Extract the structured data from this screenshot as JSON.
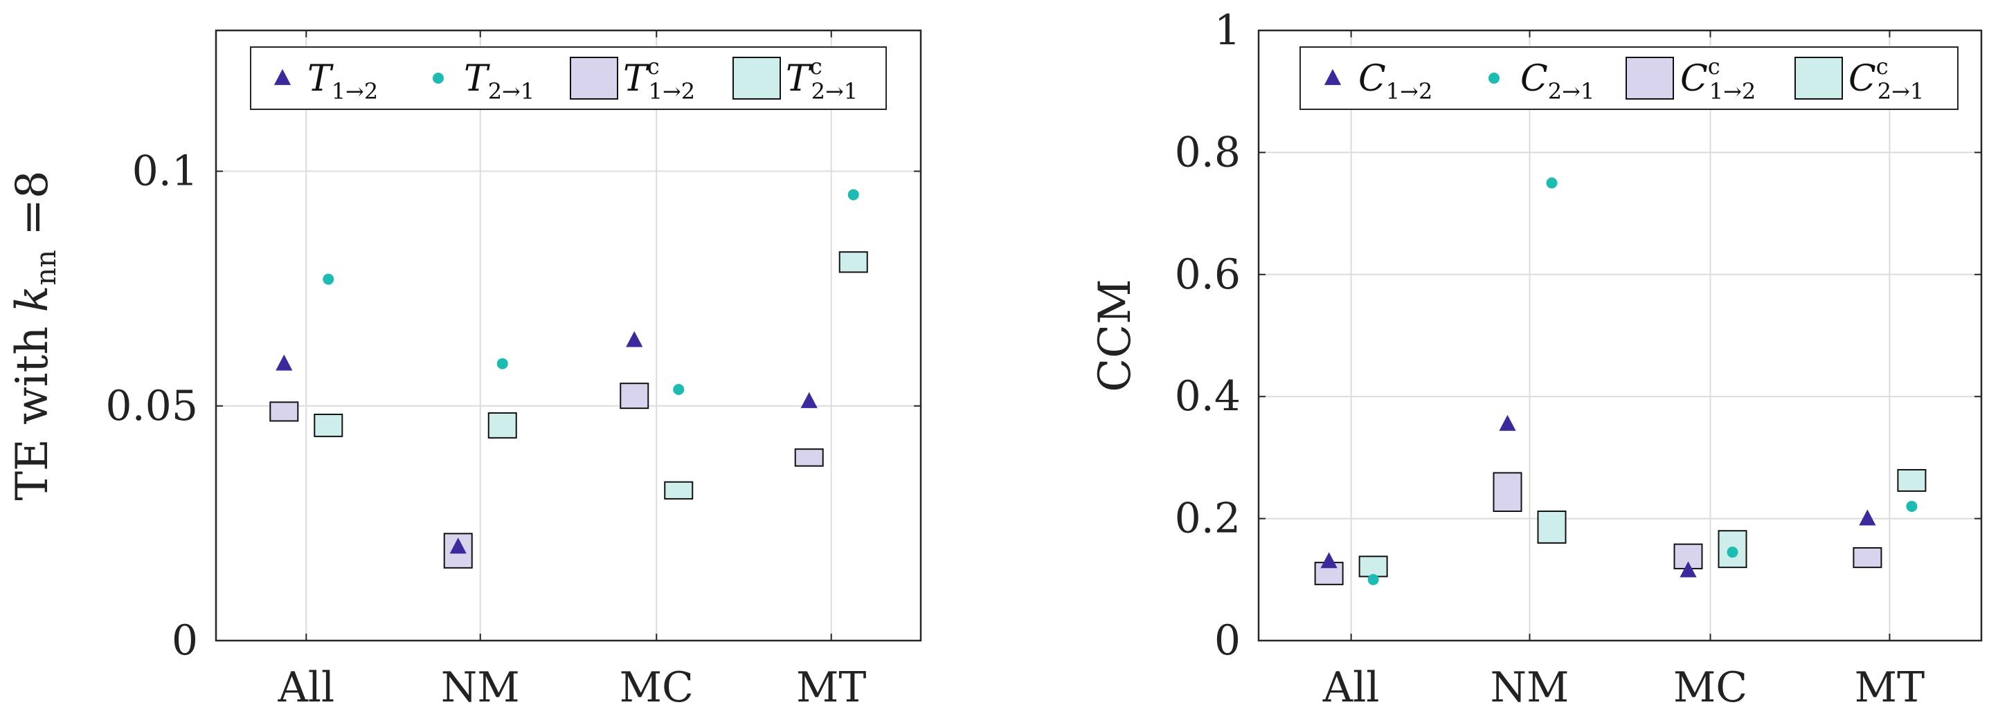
{
  "colors": {
    "forward_marker": "#3a2a9c",
    "backward_marker": "#1cbcb2",
    "forward_box_fill": "#d8d4ee",
    "backward_box_fill": "#cdeeea",
    "box_stroke": "#111111"
  },
  "chart_data": [
    {
      "type": "scatter",
      "ylabel_parts": {
        "prefix": "TE with ",
        "k": "k",
        "sub": "nn",
        "suffix": " =8"
      },
      "categories": [
        "All",
        "NM",
        "MC",
        "MT"
      ],
      "ylim": [
        0,
        0.13
      ],
      "yticks": [
        0,
        0.05,
        0.1
      ],
      "ytick_labels": [
        "0",
        "0.05",
        "0.1"
      ],
      "grid": true,
      "legend": [
        {
          "key": "forward",
          "symbol": "triangle",
          "sym": "T",
          "sub": "1→2",
          "sup": ""
        },
        {
          "key": "backward",
          "symbol": "circle",
          "sym": "T",
          "sub": "2→1",
          "sup": ""
        },
        {
          "key": "forward_c",
          "symbol": "box",
          "sym": "T",
          "sub": "1→2",
          "sup": "c"
        },
        {
          "key": "backward_c",
          "symbol": "box",
          "sym": "T",
          "sub": "2→1",
          "sup": "c"
        }
      ],
      "series": [
        {
          "name": "T 1→2",
          "key": "forward",
          "marker": "triangle",
          "values": [
            0.059,
            0.02,
            0.064,
            0.051
          ]
        },
        {
          "name": "T 2→1",
          "key": "backward",
          "marker": "circle",
          "values": [
            0.077,
            0.059,
            0.0535,
            0.095
          ]
        },
        {
          "name": "T^c 1→2",
          "key": "forward_c",
          "marker": "box",
          "low": [
            0.0468,
            0.0155,
            0.0495,
            0.0372
          ],
          "high": [
            0.0508,
            0.0228,
            0.0548,
            0.0408
          ]
        },
        {
          "name": "T^c 2→1",
          "key": "backward_c",
          "marker": "box",
          "low": [
            0.0435,
            0.0432,
            0.0302,
            0.0785
          ],
          "high": [
            0.0482,
            0.0485,
            0.0338,
            0.0828
          ]
        }
      ]
    },
    {
      "type": "scatter",
      "ylabel": "CCM",
      "categories": [
        "All",
        "NM",
        "MC",
        "MT"
      ],
      "ylim": [
        0,
        1
      ],
      "yticks": [
        0,
        0.2,
        0.4,
        0.6,
        0.8,
        1
      ],
      "ytick_labels": [
        "0",
        "0.2",
        "0.4",
        "0.6",
        "0.8",
        "1"
      ],
      "grid": true,
      "legend": [
        {
          "key": "forward",
          "symbol": "triangle",
          "sym": "C",
          "sub": "1→2",
          "sup": ""
        },
        {
          "key": "backward",
          "symbol": "circle",
          "sym": "C",
          "sub": "2→1",
          "sup": ""
        },
        {
          "key": "forward_c",
          "symbol": "box",
          "sym": "C",
          "sub": "1→2",
          "sup": "c"
        },
        {
          "key": "backward_c",
          "symbol": "box",
          "sym": "C",
          "sub": "2→1",
          "sup": "c"
        }
      ],
      "series": [
        {
          "name": "C 1→2",
          "key": "forward",
          "marker": "triangle",
          "values": [
            0.13,
            0.355,
            0.115,
            0.2
          ]
        },
        {
          "name": "C 2→1",
          "key": "backward",
          "marker": "circle",
          "values": [
            0.1,
            0.75,
            0.145,
            0.22
          ]
        },
        {
          "name": "C^c 1→2",
          "key": "forward_c",
          "marker": "box",
          "low": [
            0.092,
            0.212,
            0.118,
            0.12
          ],
          "high": [
            0.128,
            0.275,
            0.158,
            0.152
          ]
        },
        {
          "name": "C^c 2→1",
          "key": "backward_c",
          "marker": "box",
          "low": [
            0.105,
            0.16,
            0.12,
            0.245
          ],
          "high": [
            0.138,
            0.212,
            0.18,
            0.28
          ]
        }
      ]
    }
  ]
}
